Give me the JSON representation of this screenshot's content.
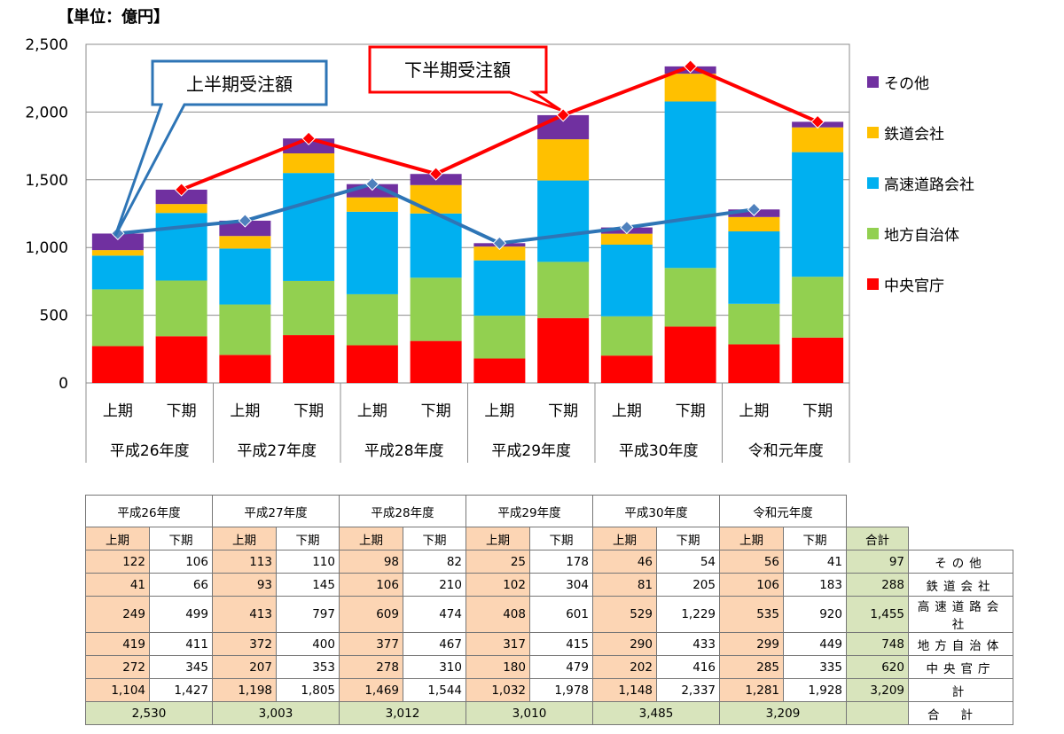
{
  "chart_data": {
    "type": "bar",
    "stacked": true,
    "unit_label": "【単位：億円】",
    "ylim": [
      0,
      2500
    ],
    "yticks": [
      "0",
      "500",
      "1,000",
      "1,500",
      "2,000",
      "2,500"
    ],
    "ytick_values": [
      0,
      500,
      1000,
      1500,
      2000,
      2500
    ],
    "years": [
      "平成26年度",
      "平成27年度",
      "平成28年度",
      "平成29年度",
      "平成30年度",
      "令和元年度"
    ],
    "halves": [
      "上期",
      "下期"
    ],
    "series": [
      {
        "name": "中央官庁",
        "color": "#ff0000",
        "values": [
          272,
          345,
          207,
          353,
          278,
          310,
          180,
          479,
          202,
          416,
          285,
          335
        ]
      },
      {
        "name": "地方自治体",
        "color": "#92d050",
        "values": [
          419,
          411,
          372,
          400,
          377,
          467,
          317,
          415,
          290,
          433,
          299,
          449
        ]
      },
      {
        "name": "高速道路会社",
        "color": "#00b0f0",
        "values": [
          249,
          499,
          413,
          797,
          609,
          474,
          408,
          601,
          529,
          1229,
          535,
          920
        ]
      },
      {
        "name": "鉄道会社",
        "color": "#ffc000",
        "values": [
          41,
          66,
          93,
          145,
          106,
          210,
          102,
          304,
          81,
          205,
          106,
          183
        ]
      },
      {
        "name": "その他",
        "color": "#7030a0",
        "values": [
          122,
          106,
          113,
          110,
          98,
          82,
          25,
          178,
          46,
          54,
          56,
          41
        ]
      }
    ],
    "legend": [
      "その他",
      "鉄道会社",
      "高速道路会社",
      "地方自治体",
      "中央官庁"
    ],
    "lines": [
      {
        "name": "上半期受注額",
        "color": "#2e75b6",
        "marker_color": "#4f81bd",
        "values": [
          1104,
          1198,
          1469,
          1032,
          1148,
          1281
        ]
      },
      {
        "name": "下半期受注額",
        "color": "#ff0000",
        "marker_color": "#ff0000",
        "values": [
          1427,
          1805,
          1544,
          1978,
          2337,
          1928
        ]
      }
    ],
    "callouts": {
      "first": "上半期受注額",
      "second": "下半期受注額"
    }
  },
  "table": {
    "years": [
      "平成26年度",
      "平成27年度",
      "平成28年度",
      "平成29年度",
      "平成30年度",
      "令和元年度"
    ],
    "half_headers": [
      "上期",
      "下期",
      "上期",
      "下期",
      "上期",
      "下期",
      "上期",
      "下期",
      "上期",
      "下期",
      "上期",
      "下期"
    ],
    "total_header": "合計",
    "rows": [
      {
        "label": "その他",
        "values": [
          "122",
          "106",
          "113",
          "110",
          "98",
          "82",
          "25",
          "178",
          "46",
          "54",
          "56",
          "41"
        ],
        "total": "97"
      },
      {
        "label": "鉄道会社",
        "values": [
          "41",
          "66",
          "93",
          "145",
          "106",
          "210",
          "102",
          "304",
          "81",
          "205",
          "106",
          "183"
        ],
        "total": "288"
      },
      {
        "label": "高速道路会社",
        "values": [
          "249",
          "499",
          "413",
          "797",
          "609",
          "474",
          "408",
          "601",
          "529",
          "1,229",
          "535",
          "920"
        ],
        "total": "1,455"
      },
      {
        "label": "地方自治体",
        "values": [
          "419",
          "411",
          "372",
          "400",
          "377",
          "467",
          "317",
          "415",
          "290",
          "433",
          "299",
          "449"
        ],
        "total": "748"
      },
      {
        "label": "中央官庁",
        "values": [
          "272",
          "345",
          "207",
          "353",
          "278",
          "310",
          "180",
          "479",
          "202",
          "416",
          "285",
          "335"
        ],
        "total": "620"
      },
      {
        "label": "計",
        "values": [
          "1,104",
          "1,427",
          "1,198",
          "1,805",
          "1,469",
          "1,544",
          "1,032",
          "1,978",
          "1,148",
          "2,337",
          "1,281",
          "1,928"
        ],
        "total": "3,209"
      }
    ],
    "year_totals": [
      "2,530",
      "3,003",
      "3,012",
      "3,010",
      "3,485",
      "3,209"
    ],
    "grand_label": "合計"
  }
}
